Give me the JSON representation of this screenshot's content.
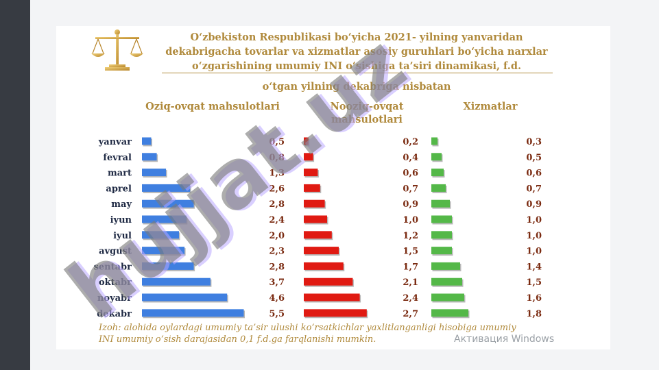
{
  "title_lines": [
    "O‘zbekiston Respublikasi bo‘yicha 2021- yilning yanvaridan",
    "dekabrigacha tovarlar va xizmatlar asosiy guruhlari bo‘yicha narxlar",
    "o‘zgarishining umumiy INI o‘sishiga ta’siri dinamikasi, f.d."
  ],
  "subtitle": "o‘tgan yilning dekabriga nisbatan",
  "footnote_lines": [
    "Izoh: alohida oylardagi umumiy ta’sir ulushi ko‘rsatkichlar yaxlitlanganligi hisobiga umumiy",
    "INI umumiy o‘sish darajasidan 0,1 f.d.ga farqlanishi mumkin."
  ],
  "overlay": {
    "activation_text": "Активация Windows",
    "watermark_text": "hujjat.uz"
  },
  "colors": {
    "text_gold": "#b08a3c",
    "label_dark": "#1f2a44",
    "value_dark": "#7a2a10",
    "blue": "#3f7fe0",
    "red": "#e01a12",
    "green": "#54b848",
    "watermark_gray": "#7a7a7a",
    "watermark_purple": "#b9a7ff"
  },
  "chart_data": {
    "type": "bar",
    "orientation": "horizontal",
    "categories": [
      "yanvar",
      "fevral",
      "mart",
      "aprel",
      "may",
      "iyun",
      "iyul",
      "avgust",
      "sentabr",
      "oktabr",
      "noyabr",
      "dekabr"
    ],
    "series": [
      {
        "name": "Oziq-ovqat mahsulotlari",
        "color": "#3f7fe0",
        "values": [
          0.5,
          0.8,
          1.3,
          2.6,
          2.8,
          2.4,
          2.0,
          2.3,
          2.8,
          3.7,
          4.6,
          5.5
        ],
        "labels": [
          "0,5",
          "0,8",
          "1,3",
          "2,6",
          "2,8",
          "2,4",
          "2,0",
          "2,3",
          "2,8",
          "3,7",
          "4,6",
          "5,5"
        ]
      },
      {
        "name": "Nooziq-ovqat mahsulotlari",
        "color": "#e01a12",
        "values": [
          0.2,
          0.4,
          0.6,
          0.7,
          0.9,
          1.0,
          1.2,
          1.5,
          1.7,
          2.1,
          2.4,
          2.7
        ],
        "labels": [
          "0,2",
          "0,4",
          "0,6",
          "0,7",
          "0,9",
          "1,0",
          "1,2",
          "1,5",
          "1,7",
          "2,1",
          "2,4",
          "2,7"
        ]
      },
      {
        "name": "Xizmatlar",
        "color": "#54b848",
        "values": [
          0.3,
          0.5,
          0.6,
          0.7,
          0.9,
          1.0,
          1.0,
          1.0,
          1.4,
          1.5,
          1.6,
          1.8
        ],
        "labels": [
          "0,3",
          "0,5",
          "0,6",
          "0,7",
          "0,9",
          "1,0",
          "1,0",
          "1,0",
          "1,4",
          "1,5",
          "1,6",
          "1,8"
        ]
      }
    ],
    "header_lines": [
      [
        "Oziq-ovqat mahsulotlari"
      ],
      [
        "Nooziq-ovqat",
        "mahsulotlari"
      ],
      [
        "Xizmatlar"
      ]
    ]
  }
}
